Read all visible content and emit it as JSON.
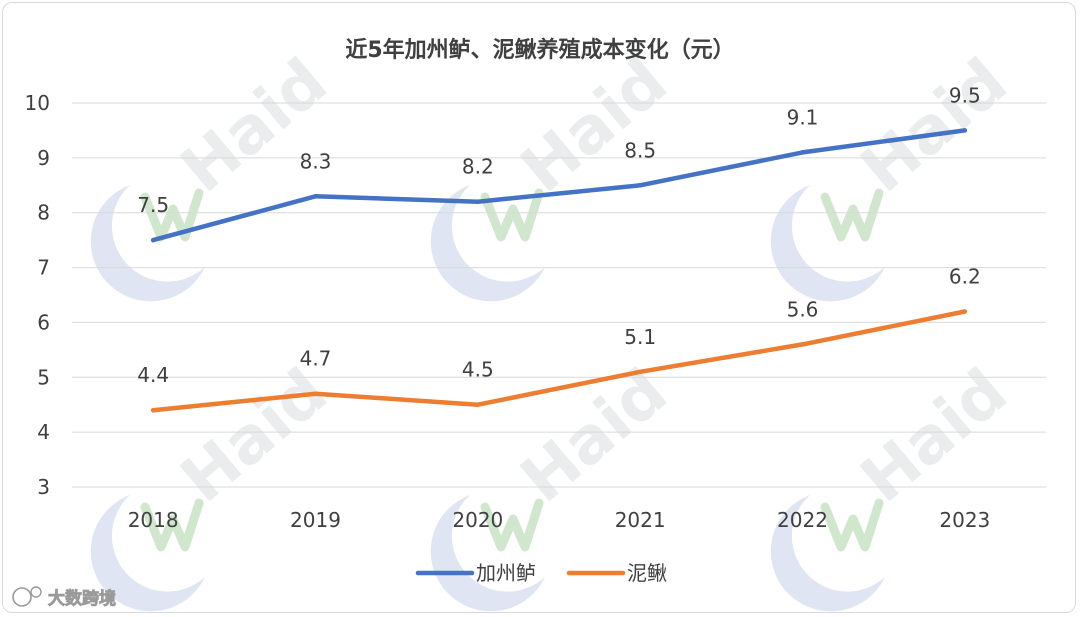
{
  "chart_data": {
    "type": "line",
    "title": "近5年加州鲈、泥鳅养殖成本变化（元）",
    "xlabel": "",
    "ylabel": "",
    "categories": [
      "2018",
      "2019",
      "2020",
      "2021",
      "2022",
      "2023"
    ],
    "ylim": [
      3,
      10
    ],
    "yticks": [
      "3",
      "4",
      "5",
      "6",
      "7",
      "8",
      "9",
      "10"
    ],
    "grid": true,
    "legend_position": "bottom",
    "series": [
      {
        "name": "加州鲈",
        "color": "#4472c4",
        "values": [
          7.5,
          8.3,
          8.2,
          8.5,
          9.1,
          9.5
        ],
        "labels": [
          "7.5",
          "8.3",
          "8.2",
          "8.5",
          "9.1",
          "9.5"
        ]
      },
      {
        "name": "泥鳅",
        "color": "#ed7d31",
        "values": [
          4.4,
          4.7,
          4.5,
          5.1,
          5.6,
          6.2
        ],
        "labels": [
          "4.4",
          "4.7",
          "4.5",
          "5.1",
          "5.6",
          "6.2"
        ]
      }
    ]
  },
  "watermark": {
    "text": "Haid",
    "credit": "大数跨境"
  },
  "colors": {
    "gridline": "#d9d9d9",
    "text": "#404040",
    "watermark": "#b8bcc4"
  }
}
